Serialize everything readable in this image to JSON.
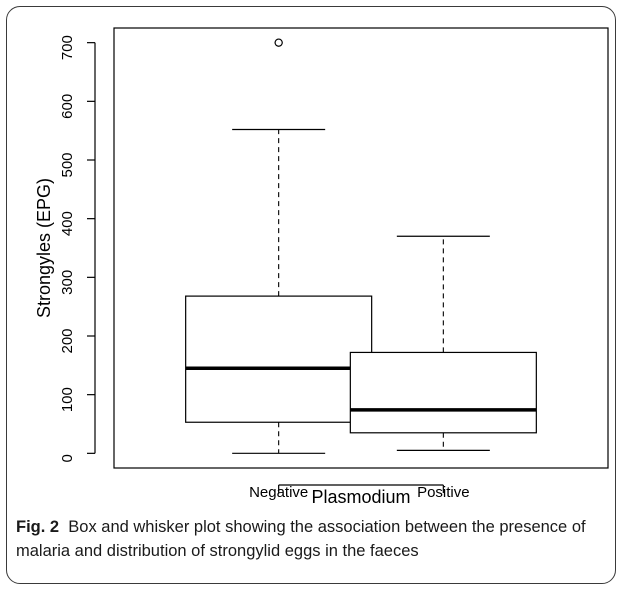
{
  "chart_data": {
    "type": "box",
    "xlabel": "Plasmodium",
    "ylabel": "Strongyles (EPG)",
    "ylim": [
      -25,
      725
    ],
    "yticks": [
      0,
      100,
      200,
      300,
      400,
      500,
      600,
      700
    ],
    "categories": [
      "Negative",
      "Positive"
    ],
    "boxes": [
      {
        "category": "Negative",
        "min": 0,
        "q1": 53,
        "median": 145,
        "q3": 268,
        "max": 552,
        "outliers": [
          700
        ]
      },
      {
        "category": "Positive",
        "min": 5,
        "q1": 35,
        "median": 74,
        "q3": 172,
        "max": 370,
        "outliers": []
      }
    ]
  },
  "caption": {
    "label": "Fig. 2",
    "text": "Box and whisker plot showing the association between the presence of malaria and distribution of strongylid eggs in the faeces"
  }
}
